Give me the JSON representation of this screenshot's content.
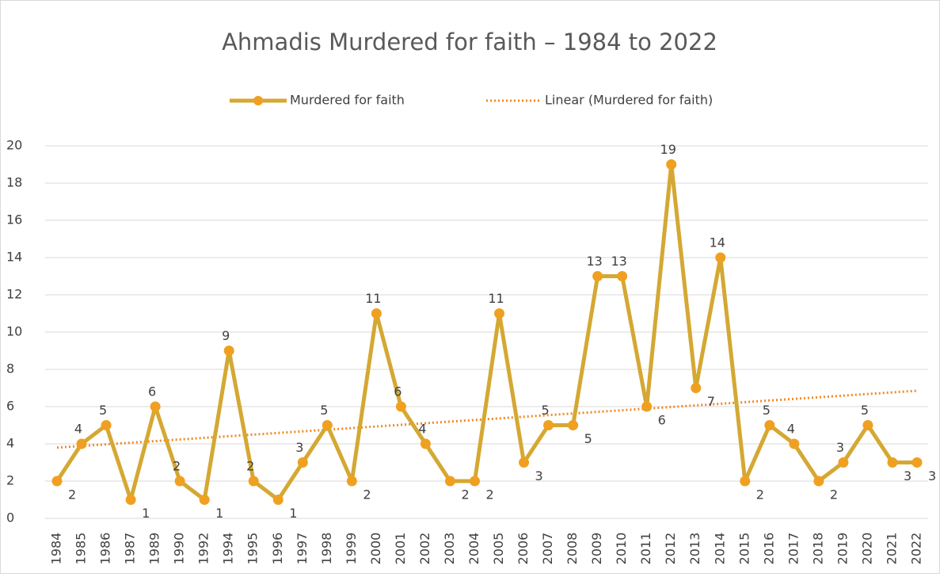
{
  "chart_data": {
    "type": "line",
    "title": "Ahmadis Murdered for faith – 1984 to 2022",
    "categories": [
      "1984",
      "1985",
      "1986",
      "1987",
      "1989",
      "1990",
      "1992",
      "1994",
      "1995",
      "1996",
      "1997",
      "1998",
      "1999",
      "2000",
      "2001",
      "2002",
      "2003",
      "2004",
      "2005",
      "2006",
      "2007",
      "2008",
      "2009",
      "2010",
      "2011",
      "2012",
      "2013",
      "2014",
      "2015",
      "2016",
      "2017",
      "2018",
      "2019",
      "2020",
      "2021",
      "2022"
    ],
    "series": [
      {
        "name": "Murdered for faith",
        "color": "#d4a833",
        "marker_color": "#f0a020",
        "values": [
          2,
          4,
          5,
          1,
          6,
          2,
          1,
          9,
          2,
          1,
          3,
          5,
          2,
          11,
          6,
          4,
          2,
          2,
          11,
          3,
          5,
          5,
          13,
          13,
          6,
          19,
          7,
          14,
          2,
          5,
          4,
          2,
          3,
          5,
          3,
          3
        ]
      }
    ],
    "trendline": {
      "name": "Linear (Murdered for faith)",
      "color": "#f08a24",
      "start": 3.8,
      "end": 6.85
    },
    "ylim": [
      0,
      20
    ],
    "yticks": [
      0,
      2,
      4,
      6,
      8,
      10,
      12,
      14,
      16,
      18,
      20
    ],
    "grid": true,
    "legend": "top"
  }
}
